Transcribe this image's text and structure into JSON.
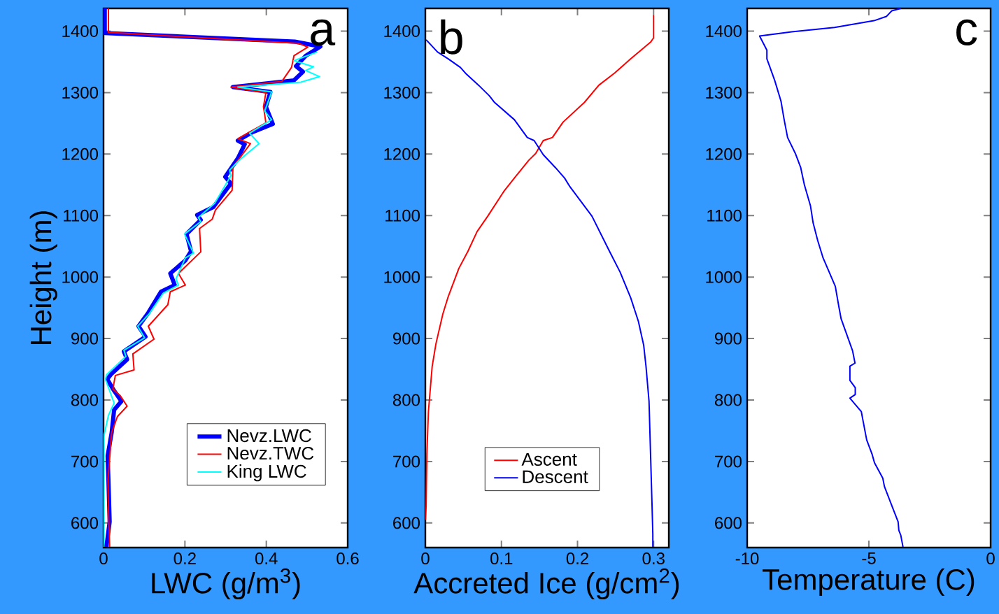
{
  "chart_data": [
    {
      "type": "line",
      "xlabel": "LWC   (g/m$^{3}$)",
      "ylabel": "Height (m)",
      "annotations": [
        "a"
      ],
      "xlim": [
        0,
        0.6
      ],
      "ylim": [
        560,
        1437
      ],
      "xticks": [
        0,
        0.2,
        0.4,
        0.6
      ],
      "yticks": [
        600,
        700,
        800,
        900,
        1000,
        1100,
        1200,
        1300,
        1400
      ],
      "legend": "bottom right",
      "series": [
        {
          "name": "Nevz.LWC",
          "color": "#0000ff",
          "x": [
            0.003,
            0.003,
            0.47,
            0.533,
            0.497,
            0.473,
            0.49,
            0.468,
            0.318,
            0.41,
            0.399,
            0.416,
            0.364,
            0.33,
            0.347,
            0.33,
            0.299,
            0.313,
            0.27,
            0.23,
            0.239,
            0.204,
            0.215,
            0.201,
            0.164,
            0.175,
            0.141,
            0.11,
            0.086,
            0.103,
            0.05,
            0.058,
            0.02,
            0.009,
            0.024,
            0.044,
            0.026,
            0.02,
            0.01,
            0.012,
            0.015,
            0.007
          ],
          "values": [
            1437,
            1397,
            1383,
            1375,
            1360,
            1343,
            1334,
            1320,
            1309,
            1301,
            1277,
            1249,
            1235,
            1222,
            1216,
            1193,
            1163,
            1152,
            1114,
            1101,
            1093,
            1070,
            1042,
            1027,
            1006,
            987,
            976,
            942,
            920,
            903,
            879,
            866,
            843,
            834,
            817,
            798,
            784,
            747,
            709,
            671,
            602,
            561
          ]
        },
        {
          "name": "Nevz.TWC",
          "color": "#ff0000",
          "x": [
            0.012,
            0.012,
            0.48,
            0.502,
            0.468,
            0.462,
            0.438,
            0.313,
            0.399,
            0.393,
            0.399,
            0.33,
            0.361,
            0.318,
            0.316,
            0.275,
            0.267,
            0.236,
            0.239,
            0.184,
            0.201,
            0.164,
            0.158,
            0.11,
            0.124,
            0.072,
            0.075,
            0.029,
            0.023,
            0.041,
            0.058,
            0.034,
            0.02,
            0.011,
            0.012,
            0.015
          ],
          "values": [
            1437,
            1398,
            1380,
            1374,
            1360,
            1341,
            1318,
            1309,
            1300,
            1277,
            1251,
            1225,
            1217,
            1179,
            1141,
            1109,
            1094,
            1079,
            1041,
            1006,
            987,
            976,
            955,
            920,
            899,
            875,
            849,
            840,
            818,
            807,
            790,
            773,
            747,
            671,
            622,
            561
          ]
        },
        {
          "name": "King LWC",
          "color": "#00ffff",
          "x": [
            0.525,
            0.468,
            0.516,
            0.497,
            0.531,
            0.485,
            0.33,
            0.413,
            0.396,
            0.413,
            0.359,
            0.382,
            0.335,
            0.31,
            0.313,
            0.273,
            0.233,
            0.239,
            0.199,
            0.221,
            0.201,
            0.178,
            0.184,
            0.147,
            0.112,
            0.084,
            0.101,
            0.05,
            0.055,
            0.007,
            0.005,
            0.026,
            0.012,
            0,
            0
          ],
          "values": [
            1366,
            1352,
            1342,
            1336,
            1326,
            1317,
            1309,
            1301,
            1270,
            1256,
            1234,
            1217,
            1191,
            1174,
            1165,
            1120,
            1097,
            1090,
            1070,
            1039,
            1031,
            997,
            987,
            974,
            940,
            920,
            901,
            881,
            871,
            841,
            833,
            795,
            775,
            739,
            561
          ]
        }
      ]
    },
    {
      "type": "line",
      "xlabel": "Accreted Ice  (g/cm$^{2}$)",
      "annotations": [
        "b"
      ],
      "xlim": [
        0,
        0.32
      ],
      "ylim": [
        560,
        1437
      ],
      "xticks": [
        0,
        0.1,
        0.2,
        0.3
      ],
      "yticks": [
        600,
        700,
        800,
        900,
        1000,
        1100,
        1200,
        1300,
        1400
      ],
      "legend": "bottom",
      "series": [
        {
          "name": "Ascent",
          "color": "#ff0000",
          "x": [
            0.3,
            0.3,
            0.296,
            0.27,
            0.249,
            0.228,
            0.209,
            0.181,
            0.167,
            0.155,
            0.145,
            0.136,
            0.117,
            0.103,
            0.082,
            0.068,
            0.056,
            0.044,
            0.03,
            0.023,
            0.014,
            0.009,
            0.004,
            0.002,
            0.001,
            0
          ],
          "values": [
            1426,
            1389,
            1382,
            1355,
            1332,
            1312,
            1284,
            1252,
            1227,
            1222,
            1201,
            1190,
            1161,
            1139,
            1099,
            1074,
            1042,
            1014,
            968,
            940,
            892,
            855,
            781,
            712,
            627,
            605
          ]
        },
        {
          "name": "Descent",
          "color": "#0000ff",
          "x": [
            0.001,
            0.016,
            0.03,
            0.046,
            0.054,
            0.07,
            0.084,
            0.091,
            0.117,
            0.134,
            0.143,
            0.155,
            0.171,
            0.183,
            0.19,
            0.219,
            0.242,
            0.256,
            0.27,
            0.28,
            0.287,
            0.29,
            0.294,
            0.296,
            0.298,
            0.299,
            0.299
          ],
          "values": [
            1386,
            1366,
            1355,
            1341,
            1330,
            1312,
            1295,
            1284,
            1256,
            1227,
            1222,
            1199,
            1178,
            1161,
            1147,
            1099,
            1042,
            1008,
            966,
            928,
            889,
            855,
            798,
            712,
            627,
            582,
            561
          ]
        }
      ]
    },
    {
      "type": "line",
      "xlabel": "Temperature (C)",
      "annotations": [
        "c"
      ],
      "xlim": [
        -10,
        0
      ],
      "ylim": [
        560,
        1437
      ],
      "xticks": [
        -10,
        -5,
        0
      ],
      "yticks": [
        600,
        700,
        800,
        900,
        1000,
        1100,
        1200,
        1300,
        1400
      ],
      "series": [
        {
          "color": "#0000ff",
          "x": [
            -3.69,
            -4.06,
            -4.28,
            -4.79,
            -6.41,
            -8.17,
            -9.49,
            -9.19,
            -9.19,
            -9.08,
            -8.87,
            -8.61,
            -8.49,
            -8.34,
            -8.02,
            -7.8,
            -7.65,
            -7.4,
            -7.29,
            -7.1,
            -6.88,
            -6.38,
            -6.23,
            -6.14,
            -5.67,
            -5.57,
            -5.78,
            -5.78,
            -5.56,
            -5.56,
            -5.78,
            -5.31,
            -5.23,
            -5.09,
            -4.87,
            -4.77,
            -4.43,
            -4.36,
            -3.8,
            -3.77,
            -3.69,
            -3.6
          ],
          "values": [
            1437,
            1433,
            1424,
            1417,
            1406,
            1399,
            1392,
            1369,
            1355,
            1343,
            1320,
            1286,
            1258,
            1227,
            1201,
            1178,
            1150,
            1116,
            1088,
            1059,
            1031,
            985,
            951,
            932,
            880,
            860,
            855,
            832,
            820,
            809,
            803,
            781,
            764,
            735,
            712,
            698,
            673,
            659,
            602,
            588,
            580,
            561
          ]
        }
      ]
    }
  ]
}
